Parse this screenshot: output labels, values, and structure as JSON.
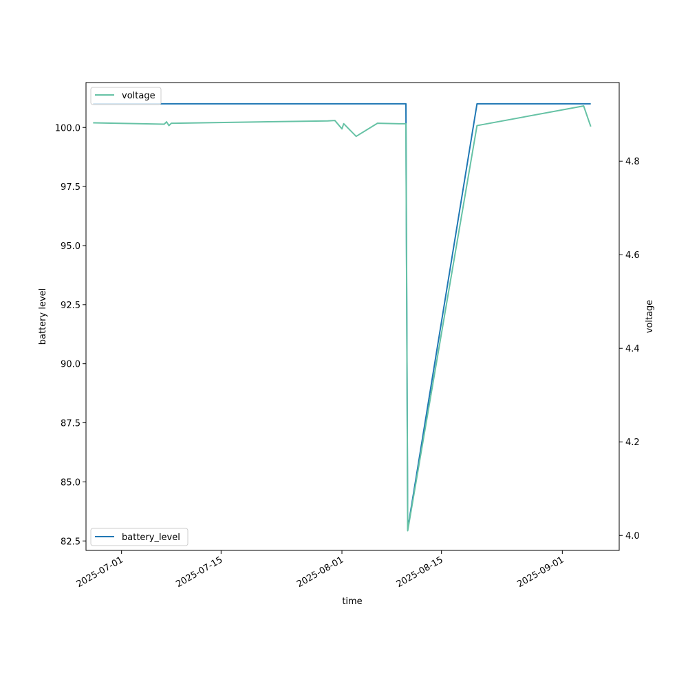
{
  "chart_data": {
    "type": "line",
    "xlabel": "time",
    "ylabel_left": "battery level",
    "ylabel_right": "voltage",
    "x_range": [
      "2025-06-26",
      "2025-09-09"
    ],
    "y_left_range": [
      82.1,
      101.9
    ],
    "y_right_range": [
      3.968,
      4.968
    ],
    "x_ticks": [
      "2025-07-01",
      "2025-07-15",
      "2025-08-01",
      "2025-08-15",
      "2025-09-01"
    ],
    "y_left_ticks": [
      "82.5",
      "85.0",
      "87.5",
      "90.0",
      "92.5",
      "95.0",
      "97.5",
      "100.0"
    ],
    "y_right_ticks": [
      "4.0",
      "4.2",
      "4.4",
      "4.6",
      "4.8"
    ],
    "y_left_tick_values": [
      82.5,
      85.0,
      87.5,
      90.0,
      92.5,
      95.0,
      97.5,
      100.0
    ],
    "y_right_tick_values": [
      4.0,
      4.2,
      4.4,
      4.6,
      4.8
    ],
    "legend_left": {
      "label": "battery_level",
      "placement": "lower-left"
    },
    "legend_right": {
      "label": "voltage",
      "placement": "upper-left"
    },
    "series": [
      {
        "name": "battery_level",
        "axis": "left",
        "color": "#1f77b4",
        "points": [
          [
            "2025-06-27",
            101.0
          ],
          [
            "2025-08-10",
            101.0
          ],
          [
            "2025-08-10T06:00",
            83.0
          ],
          [
            "2025-08-20",
            101.0
          ],
          [
            "2025-09-05",
            101.0
          ]
        ]
      },
      {
        "name": "voltage",
        "axis": "right",
        "color": "#66c2a5",
        "points": [
          [
            "2025-06-27",
            4.882
          ],
          [
            "2025-07-07",
            4.879
          ],
          [
            "2025-07-07T08:00",
            4.884
          ],
          [
            "2025-07-07T16:00",
            4.876
          ],
          [
            "2025-07-08",
            4.881
          ],
          [
            "2025-07-30",
            4.886
          ],
          [
            "2025-07-31",
            4.887
          ],
          [
            "2025-08-01",
            4.869
          ],
          [
            "2025-08-01T06:00",
            4.88
          ],
          [
            "2025-08-03",
            4.853
          ],
          [
            "2025-08-06",
            4.881
          ],
          [
            "2025-08-09",
            4.88
          ],
          [
            "2025-08-10",
            4.88
          ],
          [
            "2025-08-10T06:00",
            4.01
          ],
          [
            "2025-08-20",
            4.876
          ],
          [
            "2025-09-04",
            4.918
          ],
          [
            "2025-09-05",
            4.874
          ]
        ]
      }
    ]
  }
}
